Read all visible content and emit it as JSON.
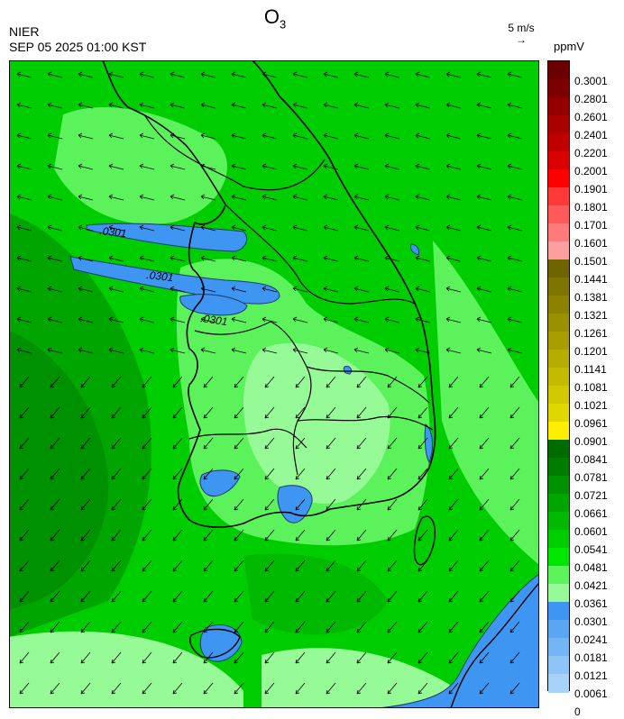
{
  "header": {
    "title_main": "O",
    "title_sub": "3",
    "agency": "NIER",
    "datetime": "SEP 05 2025 01:00 KST",
    "wind_reference": "5 m/s",
    "units": "ppmV"
  },
  "map": {
    "contour_labels": [
      ".0301",
      ".0301",
      ".0301"
    ]
  },
  "colorbar": {
    "labels": [
      "0.3001",
      "0.2801",
      "0.2601",
      "0.2401",
      "0.2201",
      "0.2001",
      "0.1901",
      "0.1801",
      "0.1701",
      "0.1601",
      "0.1501",
      "0.1441",
      "0.1381",
      "0.1321",
      "0.1261",
      "0.1201",
      "0.1141",
      "0.1081",
      "0.1021",
      "0.0961",
      "0.0901",
      "0.0841",
      "0.0781",
      "0.0721",
      "0.0661",
      "0.0601",
      "0.0541",
      "0.0481",
      "0.0421",
      "0.0361",
      "0.0301",
      "0.0241",
      "0.0181",
      "0.0121",
      "0.0061",
      "0"
    ],
    "colors": [
      "#6b0000",
      "#7d0000",
      "#930000",
      "#a90000",
      "#c00000",
      "#d80000",
      "#ff0000",
      "#ff3838",
      "#ff5a5a",
      "#ff7a7a",
      "#ff9e9e",
      "#6e6400",
      "#7e7400",
      "#8c8200",
      "#9a9000",
      "#a89e00",
      "#b6ac00",
      "#c4ba00",
      "#d2c800",
      "#e0d600",
      "#ffee00",
      "#006b00",
      "#007d00",
      "#009100",
      "#00a500",
      "#00b900",
      "#00cd00",
      "#00e600",
      "#5cf25c",
      "#96fa96",
      "#3f96f2",
      "#5aa6f2",
      "#74b6f4",
      "#8ec4f6",
      "#a8d2f8"
    ]
  }
}
